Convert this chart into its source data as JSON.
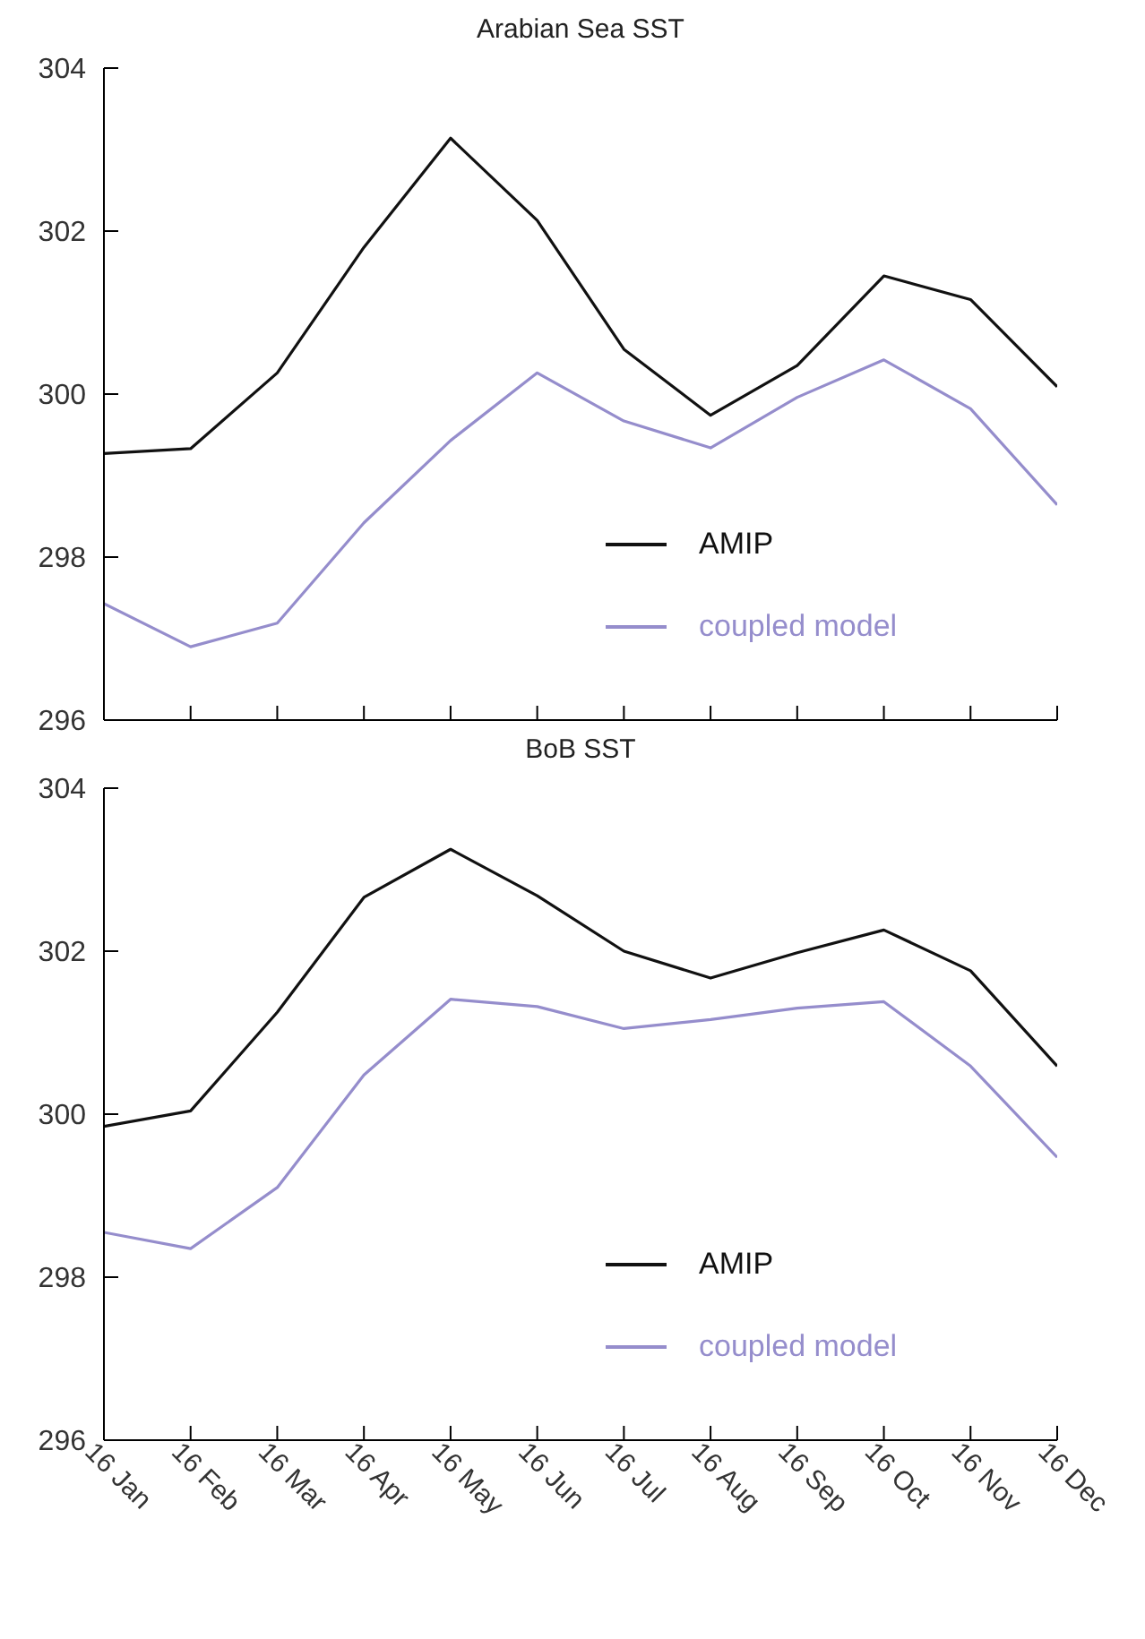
{
  "chart_data": [
    {
      "type": "line",
      "title": "Arabian Sea SST",
      "categories": [
        null,
        null,
        null,
        null,
        null,
        null,
        null,
        null,
        null,
        null,
        null,
        null
      ],
      "series": [
        {
          "name": "AMIP",
          "color": "#111111",
          "values": [
            299.27,
            299.33,
            300.26,
            301.8,
            303.14,
            302.13,
            300.55,
            299.74,
            300.35,
            301.45,
            301.16,
            300.09
          ]
        },
        {
          "name": "coupled model",
          "color": "#958dcc",
          "values": [
            297.43,
            296.9,
            297.19,
            298.42,
            299.43,
            300.26,
            299.67,
            299.34,
            299.96,
            300.42,
            299.82,
            298.64
          ]
        }
      ],
      "ylim": [
        296,
        304
      ],
      "yticks": [
        296,
        298,
        300,
        302,
        304
      ],
      "legend": "bottom right",
      "marker": "none",
      "line_style": "solid",
      "tick_labels": "y"
    },
    {
      "type": "line",
      "title": "BoB SST",
      "categories": [
        "16 Jan",
        "16 Feb",
        "16 Mar",
        "16 Apr",
        "16 May",
        "16 Jun",
        "16 Jul",
        "16 Aug",
        "16 Sep",
        "16 Oct",
        "16 Nov",
        "16 Dec"
      ],
      "series": [
        {
          "name": "AMIP",
          "color": "#111111",
          "values": [
            299.85,
            300.04,
            301.25,
            302.66,
            303.25,
            302.68,
            302.0,
            301.67,
            301.98,
            302.26,
            301.76,
            300.59
          ]
        },
        {
          "name": "coupled model",
          "color": "#958dcc",
          "values": [
            298.55,
            298.35,
            299.1,
            300.48,
            301.41,
            301.32,
            301.05,
            301.16,
            301.3,
            301.38,
            300.59,
            299.47
          ]
        }
      ],
      "ylim": [
        296,
        304
      ],
      "yticks": [
        296,
        298,
        300,
        302,
        304
      ],
      "legend": "bottom right",
      "marker": "none",
      "line_style": "solid"
    }
  ]
}
